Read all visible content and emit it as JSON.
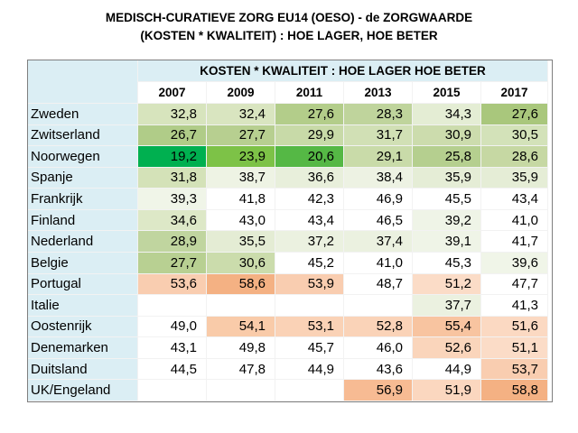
{
  "header": {
    "lines": [
      "MEDISCH-CURATIEVE ZORG EU14 (OESO)  - de ZORGWAARDE",
      "(KOSTEN * KWALITEIT) : HOE LAGER, HOE BETER"
    ]
  },
  "table": {
    "caption": "KOSTEN * KWALITEIT : HOE LAGER HOE BETER",
    "columns": [
      "2007",
      "2009",
      "2011",
      "2013",
      "2015",
      "2017"
    ],
    "rows": [
      {
        "label": "Zweden",
        "values": [
          "32,8",
          "32,4",
          "27,6",
          "28,3",
          "34,3",
          "27,6"
        ],
        "colors": [
          "#d7e4bd",
          "#d9e5c0",
          "#b3cd8a",
          "#bfd49c",
          "#e4edd4",
          "#a9c77c"
        ]
      },
      {
        "label": "Zwitserland",
        "values": [
          "26,7",
          "27,7",
          "29,9",
          "31,7",
          "30,9",
          "30,5"
        ],
        "colors": [
          "#b0cc88",
          "#b7cf90",
          "#c8daa8",
          "#d1e0b5",
          "#ccdcad",
          "#d3e2b9"
        ]
      },
      {
        "label": "Noorwegen",
        "values": [
          "19,2",
          "23,9",
          "20,6",
          "29,1",
          "25,8",
          "28,6"
        ],
        "colors": [
          "#00b050",
          "#7dc247",
          "#55b845",
          "#c9dba9",
          "#b5cf8f",
          "#c6d8a3"
        ]
      },
      {
        "label": "Spanje",
        "values": [
          "31,8",
          "38,7",
          "36,6",
          "38,4",
          "35,9",
          "35,9"
        ],
        "colors": [
          "#d4e2b8",
          "#eef3e4",
          "#e8efdb",
          "#edf2e3",
          "#e5edd6",
          "#e5edd6"
        ]
      },
      {
        "label": "Frankrijk",
        "values": [
          "39,3",
          "41,8",
          "42,3",
          "46,9",
          "45,5",
          "43,4"
        ],
        "colors": [
          "#f0f5e8",
          "#ffffff",
          "#ffffff",
          "#ffffff",
          "#ffffff",
          "#ffffff"
        ]
      },
      {
        "label": "Finland",
        "values": [
          "34,6",
          "43,0",
          "43,4",
          "46,5",
          "39,2",
          "41,0"
        ],
        "colors": [
          "#dde8c7",
          "#ffffff",
          "#ffffff",
          "#ffffff",
          "#eff4e7",
          "#ffffff"
        ]
      },
      {
        "label": "Nederland",
        "values": [
          "28,9",
          "35,5",
          "37,2",
          "37,4",
          "39,1",
          "41,7"
        ],
        "colors": [
          "#c0d59f",
          "#e4ecd4",
          "#ebf1e0",
          "#ebf1e0",
          "#eff4e7",
          "#ffffff"
        ]
      },
      {
        "label": "Belgie",
        "values": [
          "27,7",
          "30,6",
          "45,2",
          "41,0",
          "45,3",
          "39,6"
        ],
        "colors": [
          "#b8d092",
          "#cbdcac",
          "#ffffff",
          "#ffffff",
          "#ffffff",
          "#f0f5e8"
        ]
      },
      {
        "label": "Portugal",
        "values": [
          "53,6",
          "58,6",
          "53,9",
          "48,7",
          "51,2",
          "47,7"
        ],
        "colors": [
          "#f9cdb0",
          "#f4b183",
          "#f9cdb0",
          "#ffffff",
          "#fbdcc7",
          "#ffffff"
        ]
      },
      {
        "label": "Italie",
        "values": [
          null,
          null,
          null,
          null,
          "37,7",
          "41,3"
        ],
        "colors": [
          "#ffffff",
          "#ffffff",
          "#ffffff",
          "#ffffff",
          "#ebf1e0",
          "#ffffff"
        ]
      },
      {
        "label": "Oostenrijk",
        "values": [
          "49,0",
          "54,1",
          "53,1",
          "52,8",
          "55,4",
          "51,6"
        ],
        "colors": [
          "#ffffff",
          "#f9cba9",
          "#fad2b6",
          "#fad3b8",
          "#f8c4a0",
          "#fbd9c2"
        ]
      },
      {
        "label": "Denemarken",
        "values": [
          "43,1",
          "49,8",
          "45,7",
          "46,0",
          "52,6",
          "51,1"
        ],
        "colors": [
          "#ffffff",
          "#ffffff",
          "#ffffff",
          "#ffffff",
          "#fad5bb",
          "#fbdcc7"
        ]
      },
      {
        "label": "Duitsland",
        "values": [
          "44,5",
          "47,8",
          "44,9",
          "43,6",
          "44,9",
          "53,7"
        ],
        "colors": [
          "#ffffff",
          "#ffffff",
          "#ffffff",
          "#ffffff",
          "#ffffff",
          "#f9cdb0"
        ]
      },
      {
        "label": "UK/Engeland",
        "values": [
          null,
          null,
          null,
          "56,9",
          "51,9",
          "58,8"
        ],
        "colors": [
          "#ffffff",
          "#ffffff",
          "#ffffff",
          "#f7bb93",
          "#fbd7bf",
          "#f4b183"
        ]
      }
    ]
  }
}
